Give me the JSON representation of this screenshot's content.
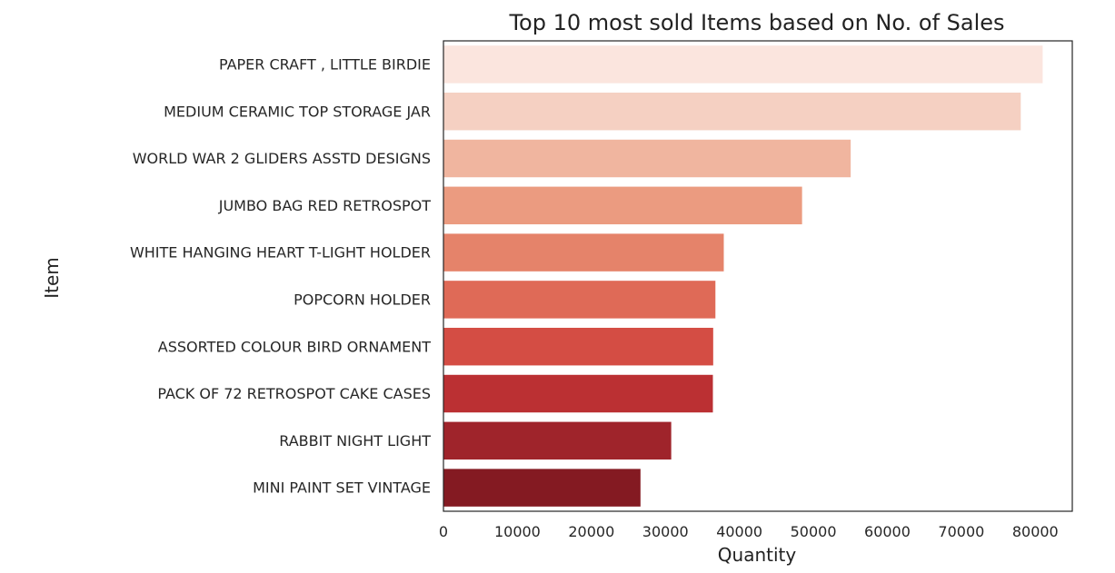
{
  "chart_data": {
    "type": "bar",
    "orientation": "horizontal",
    "title": "Top 10 most sold Items based on No. of Sales",
    "xlabel": "Quantity",
    "ylabel": "Item",
    "xlim": [
      0,
      85000
    ],
    "xticks": [
      0,
      10000,
      20000,
      30000,
      40000,
      50000,
      60000,
      70000,
      80000
    ],
    "grid": false,
    "categories": [
      "PAPER CRAFT , LITTLE BIRDIE",
      "MEDIUM CERAMIC TOP STORAGE JAR",
      "WORLD WAR 2 GLIDERS ASSTD DESIGNS",
      "JUMBO BAG RED RETROSPOT",
      "WHITE HANGING HEART T-LIGHT HOLDER",
      "POPCORN HOLDER",
      "ASSORTED COLOUR BIRD ORNAMENT",
      "PACK OF 72 RETROSPOT CAKE CASES",
      "RABBIT NIGHT LIGHT",
      "MINI PAINT SET VINTAGE"
    ],
    "values": [
      80995,
      78033,
      55047,
      48474,
      37891,
      36761,
      36461,
      36419,
      30788,
      26633
    ],
    "colors": [
      "#fbe5de",
      "#f5d0c2",
      "#f0b59f",
      "#eb9b80",
      "#e5836a",
      "#df6a57",
      "#d44d44",
      "#bb3033",
      "#9f242b",
      "#841a22"
    ]
  }
}
